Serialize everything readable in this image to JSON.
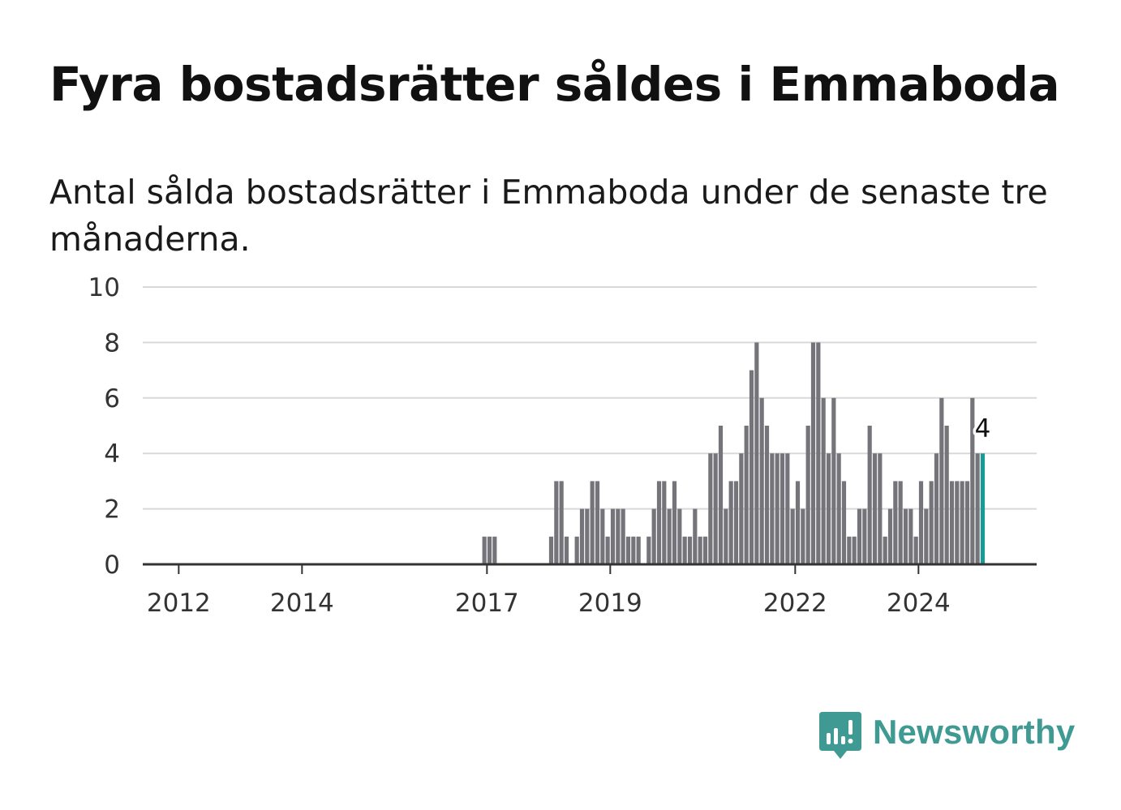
{
  "title": "Fyra bostadsrätter såldes i Emmaboda",
  "subtitle": "Antal sålda bostadsrätter i Emmaboda under de senaste tre månaderna.",
  "brand": {
    "name": "Newsworthy",
    "logo_icon": "newsworthy-chart-bubble-icon",
    "color": "#3f9a93"
  },
  "chart_data": {
    "type": "bar",
    "title": "Fyra bostadsrätter såldes i Emmaboda",
    "subtitle": "Antal sålda bostadsrätter i Emmaboda under de senaste tre månaderna.",
    "xlabel": "",
    "ylabel": "",
    "ylim": [
      0,
      10
    ],
    "yticks": [
      "0",
      "2",
      "4",
      "6",
      "8",
      "10"
    ],
    "xticks": [
      "2012",
      "2014",
      "2017",
      "2019",
      "2022",
      "2024"
    ],
    "xlim": [
      "2011-06",
      "2025-12"
    ],
    "grid": true,
    "bar_color": "#75747a",
    "highlight_color": "#1a9a94",
    "highlight_label": "4",
    "months": [
      "2016-12",
      "2017-01",
      "2017-02",
      "2017-03",
      "2017-04",
      "2017-05",
      "2017-06",
      "2017-07",
      "2017-08",
      "2017-09",
      "2017-10",
      "2017-11",
      "2017-12",
      "2018-01",
      "2018-02",
      "2018-03",
      "2018-04",
      "2018-05",
      "2018-06",
      "2018-07",
      "2018-08",
      "2018-09",
      "2018-10",
      "2018-11",
      "2018-12",
      "2019-01",
      "2019-02",
      "2019-03",
      "2019-04",
      "2019-05",
      "2019-06",
      "2019-07",
      "2019-08",
      "2019-09",
      "2019-10",
      "2019-11",
      "2019-12",
      "2020-01",
      "2020-02",
      "2020-03",
      "2020-04",
      "2020-05",
      "2020-06",
      "2020-07",
      "2020-08",
      "2020-09",
      "2020-10",
      "2020-11",
      "2020-12",
      "2021-01",
      "2021-02",
      "2021-03",
      "2021-04",
      "2021-05",
      "2021-06",
      "2021-07",
      "2021-08",
      "2021-09",
      "2021-10",
      "2021-11",
      "2021-12",
      "2022-01",
      "2022-02",
      "2022-03",
      "2022-04",
      "2022-05",
      "2022-06",
      "2022-07",
      "2022-08",
      "2022-09",
      "2022-10",
      "2022-11",
      "2022-12",
      "2023-01",
      "2023-02",
      "2023-03",
      "2023-04",
      "2023-05",
      "2023-06",
      "2023-07",
      "2023-08",
      "2023-09",
      "2023-10",
      "2023-11",
      "2023-12",
      "2024-01",
      "2024-02",
      "2024-03",
      "2024-04",
      "2024-05",
      "2024-06",
      "2024-07",
      "2024-08",
      "2024-09",
      "2024-10",
      "2024-11",
      "2024-12",
      "2025-01",
      "2025-02",
      "2025-03"
    ],
    "values": [
      1,
      1,
      1,
      0,
      0,
      0,
      0,
      0,
      0,
      0,
      0,
      0,
      0,
      1,
      3,
      3,
      1,
      0,
      1,
      2,
      2,
      3,
      3,
      2,
      1,
      2,
      2,
      2,
      1,
      1,
      1,
      0,
      1,
      2,
      3,
      3,
      2,
      3,
      2,
      1,
      1,
      2,
      1,
      1,
      4,
      4,
      5,
      2,
      3,
      3,
      4,
      5,
      7,
      8,
      6,
      5,
      4,
      4,
      4,
      4,
      2,
      3,
      2,
      5,
      8,
      8,
      6,
      4,
      6,
      4,
      3,
      1,
      1,
      2,
      2,
      5,
      4,
      4,
      1,
      2,
      3,
      3,
      2,
      2,
      1,
      3,
      2,
      3,
      4,
      6,
      5,
      3,
      3,
      3,
      3,
      6,
      4,
      4,
      0,
      0
    ]
  }
}
